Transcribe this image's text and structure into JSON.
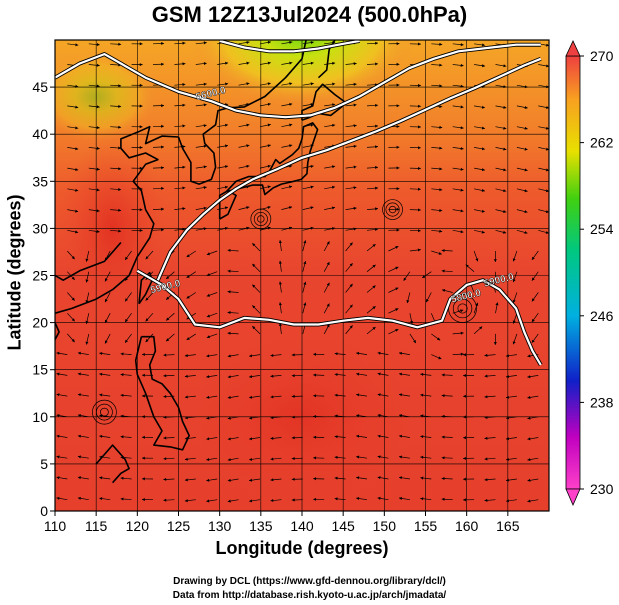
{
  "chart_data": {
    "type": "heatmap",
    "title": "GSM 12Z13Jul2024 (500.0hPa)",
    "xlabel": "Longitude (degrees)",
    "ylabel": "Latitude  (degrees)",
    "xlim": [
      110,
      170
    ],
    "ylim": [
      0,
      50
    ],
    "x_ticks": [
      "110",
      "115",
      "120",
      "125",
      "130",
      "135",
      "140",
      "145",
      "150",
      "155",
      "160",
      "165"
    ],
    "y_ticks": [
      "0",
      "5",
      "10",
      "15",
      "20",
      "25",
      "30",
      "35",
      "40",
      "45"
    ],
    "colorbar": {
      "min": 230,
      "max": 270,
      "ticks": [
        "270",
        "262",
        "254",
        "246",
        "238",
        "230"
      ]
    },
    "contours": [
      {
        "label": "5600.0",
        "points": [
          [
            110,
            46
          ],
          [
            113,
            47.5
          ],
          [
            116,
            48.5
          ],
          [
            118,
            47.5
          ],
          [
            121,
            46
          ],
          [
            125,
            44.5
          ],
          [
            129,
            43.5
          ],
          [
            132,
            42.5
          ],
          [
            135,
            42
          ],
          [
            138,
            41.8
          ],
          [
            141,
            42
          ],
          [
            144,
            42.8
          ],
          [
            147,
            44
          ],
          [
            150,
            45.5
          ],
          [
            153,
            47
          ],
          [
            156,
            48
          ],
          [
            159,
            48.8
          ],
          [
            163,
            49.2
          ],
          [
            166,
            49.5
          ],
          [
            169,
            49.5
          ]
        ]
      },
      {
        "label": "5600.0",
        "points": [
          [
            130,
            49.9
          ],
          [
            133,
            49.2
          ],
          [
            136,
            48.8
          ],
          [
            139,
            48.8
          ],
          [
            142,
            49.1
          ],
          [
            145,
            49.6
          ],
          [
            147,
            49.9
          ]
        ]
      },
      {
        "label": "5800.0",
        "points": [
          [
            120,
            25.5
          ],
          [
            123,
            24
          ],
          [
            125,
            22.5
          ],
          [
            127,
            19.8
          ],
          [
            130,
            19.5
          ],
          [
            133,
            20.5
          ],
          [
            136,
            20.3
          ],
          [
            139,
            19.8
          ],
          [
            142,
            19.8
          ],
          [
            145,
            20.2
          ],
          [
            148,
            20.5
          ],
          [
            151,
            20.2
          ],
          [
            154,
            19.5
          ],
          [
            157,
            20.2
          ],
          [
            158,
            22.5
          ],
          [
            160,
            24
          ],
          [
            162,
            24.5
          ],
          [
            164,
            23.5
          ],
          [
            166,
            21.5
          ],
          [
            167,
            19
          ],
          [
            168,
            17
          ],
          [
            169,
            15.5
          ]
        ]
      },
      {
        "label": "5900.0",
        "points": [
          [
            122.5,
            24.5
          ],
          [
            124,
            27.5
          ],
          [
            126,
            29.8
          ],
          [
            128,
            31.5
          ],
          [
            130,
            33
          ],
          [
            132,
            34.2
          ],
          [
            134,
            35.2
          ],
          [
            137,
            36.3
          ],
          [
            140,
            37.5
          ],
          [
            143,
            38.3
          ],
          [
            146,
            39.3
          ],
          [
            149,
            40.3
          ],
          [
            152,
            41.4
          ],
          [
            155,
            42.6
          ],
          [
            158,
            43.8
          ],
          [
            161,
            44.9
          ],
          [
            164,
            46.1
          ],
          [
            167,
            47.3
          ],
          [
            169,
            48
          ]
        ]
      }
    ],
    "annotations": [
      {
        "text": "5600.0",
        "x": 129,
        "y": 44
      },
      {
        "text": "5800.0",
        "x": 160,
        "y": 22.5
      },
      {
        "text": "5900.0",
        "x": 123.5,
        "y": 23.5
      },
      {
        "text": "5900.0",
        "x": 164,
        "y": 24.2
      }
    ]
  },
  "credits": {
    "drawing": "Drawing by DCL (https://www.gfd-dennou.org/library/dcl/)",
    "data": "Data from http://database.rish.kyoto-u.ac.jp/arch/jmadata/"
  },
  "colors": {
    "warm": "#e8452e",
    "orange": "#f08a24",
    "yellow": "#f0d418",
    "green": "#5cd41a",
    "contour": "#ffffff",
    "stream": "#000000"
  }
}
